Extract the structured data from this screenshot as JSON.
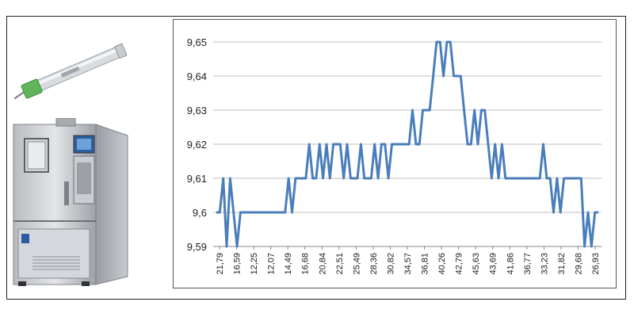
{
  "chart_data": {
    "type": "line",
    "title": "",
    "xlabel": "",
    "ylabel": "",
    "ylim": [
      9.59,
      9.65
    ],
    "yticks": [
      "9,59",
      "9,6",
      "9,61",
      "9,62",
      "9,63",
      "9,64",
      "9,65"
    ],
    "ytick_values": [
      9.59,
      9.6,
      9.61,
      9.62,
      9.63,
      9.64,
      9.65
    ],
    "xticks": [
      "21,79",
      "16,59",
      "12,25",
      "12,07",
      "14,49",
      "16,68",
      "20,84",
      "22,51",
      "25,49",
      "28,36",
      "30,82",
      "34,57",
      "36,81",
      "40,26",
      "42,79",
      "45,63",
      "43,69",
      "41,86",
      "36,77",
      "33,23",
      "31,82",
      "29,68",
      "26,93"
    ],
    "grid": "horizontal",
    "line_color": "#4a7ebb",
    "series": [
      {
        "values": [
          9.6,
          9.6,
          9.61,
          9.59,
          9.61,
          9.6,
          9.59,
          9.6,
          9.6,
          9.6,
          9.6,
          9.6,
          9.6,
          9.6,
          9.6,
          9.6,
          9.6,
          9.6,
          9.6,
          9.6,
          9.6,
          9.61,
          9.6,
          9.61,
          9.61,
          9.61,
          9.61,
          9.62,
          9.61,
          9.61,
          9.62,
          9.61,
          9.62,
          9.61,
          9.62,
          9.62,
          9.62,
          9.61,
          9.62,
          9.61,
          9.61,
          9.61,
          9.62,
          9.61,
          9.61,
          9.61,
          9.62,
          9.61,
          9.62,
          9.62,
          9.61,
          9.62,
          9.62,
          9.62,
          9.62,
          9.62,
          9.62,
          9.63,
          9.62,
          9.62,
          9.63,
          9.63,
          9.63,
          9.64,
          9.65,
          9.65,
          9.64,
          9.65,
          9.65,
          9.64,
          9.64,
          9.64,
          9.63,
          9.62,
          9.62,
          9.63,
          9.62,
          9.63,
          9.63,
          9.62,
          9.61,
          9.62,
          9.61,
          9.62,
          9.61,
          9.61,
          9.61,
          9.61,
          9.61,
          9.61,
          9.61,
          9.61,
          9.61,
          9.61,
          9.61,
          9.62,
          9.61,
          9.61,
          9.6,
          9.61,
          9.6,
          9.61,
          9.61,
          9.61,
          9.61,
          9.61,
          9.61,
          9.59,
          9.6,
          9.59,
          9.6,
          9.6
        ]
      }
    ]
  },
  "images": {
    "sensor_photo": "linear-position-sensor",
    "chamber_photo": "environmental-test-chamber"
  }
}
